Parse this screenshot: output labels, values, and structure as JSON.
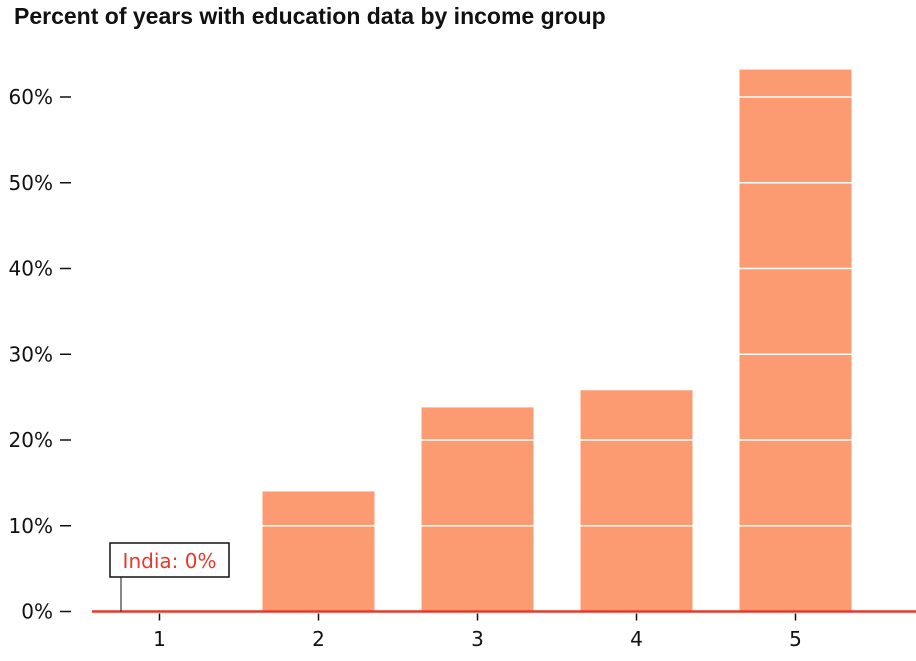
{
  "chart_data": {
    "type": "bar",
    "title": "Percent of years with education data by income group",
    "categories": [
      "1",
      "2",
      "3",
      "4",
      "5"
    ],
    "values": [
      0,
      14,
      23.8,
      25.8,
      63.2
    ],
    "ylim": [
      0,
      65
    ],
    "yticks": [
      0,
      10,
      20,
      30,
      40,
      50,
      60
    ],
    "ytick_suffix": "%",
    "xlabel": "",
    "ylabel": "",
    "grid": "white gridlines drawn over bars",
    "bar_color": "#fc9b72",
    "highlight_color": "#e8382c",
    "annotation": {
      "text": "India: 0%",
      "category": "1",
      "value": 0
    }
  }
}
